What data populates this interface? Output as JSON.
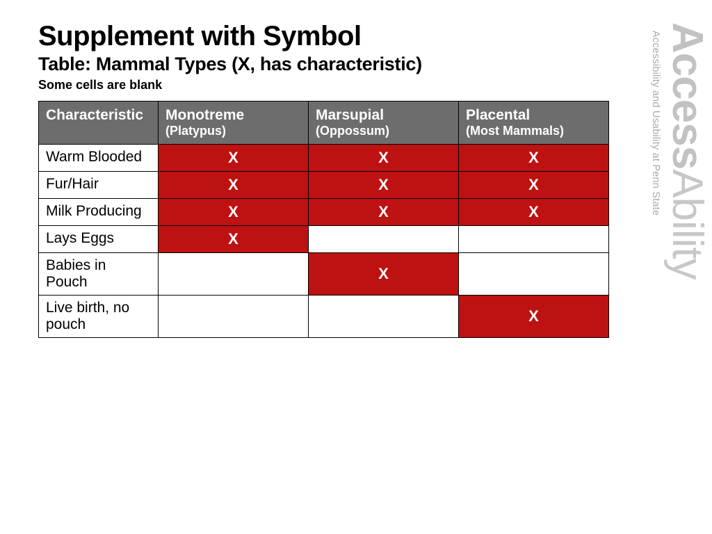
{
  "title": "Supplement with Symbol",
  "subtitle": "Table: Mammal Types (X, has characteristic)",
  "note": "Some cells are blank",
  "watermark": {
    "main_bold": "Access",
    "main_light": "Ability",
    "tagline": "Accessibility and Usability at Penn State"
  },
  "table": {
    "mark_glyph": "X",
    "mark_bg_color": "#be1111",
    "mark_text_color": "#ffffff",
    "header_bg_color": "#6d6d6d",
    "header_text_color": "#ffffff",
    "blank_bg_color": "#ffffff",
    "border_color": "#000000",
    "columns": [
      {
        "label": "Characteristic",
        "sub": ""
      },
      {
        "label": "Monotreme",
        "sub": "(Platypus)"
      },
      {
        "label": "Marsupial",
        "sub": "(Oppossum)"
      },
      {
        "label": "Placental",
        "sub": "(Most Mammals)"
      }
    ],
    "rows": [
      {
        "label": "Warm Blooded",
        "cells": [
          true,
          true,
          true
        ]
      },
      {
        "label": "Fur/Hair",
        "cells": [
          true,
          true,
          true
        ]
      },
      {
        "label": "Milk Producing",
        "cells": [
          true,
          true,
          true
        ]
      },
      {
        "label": "Lays Eggs",
        "cells": [
          true,
          false,
          false
        ]
      },
      {
        "label": "Babies in Pouch",
        "cells": [
          false,
          true,
          false
        ]
      },
      {
        "label": "Live birth, no pouch",
        "cells": [
          false,
          false,
          true
        ]
      }
    ]
  }
}
